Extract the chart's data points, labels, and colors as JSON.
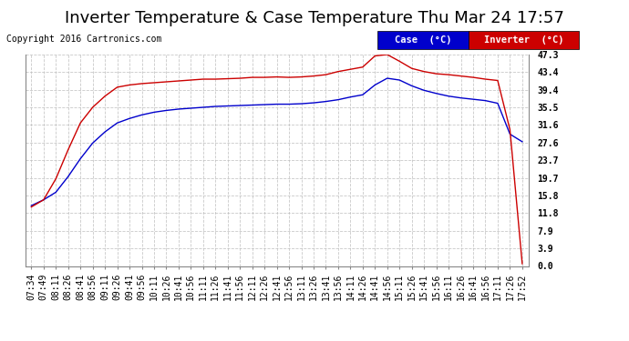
{
  "title": "Inverter Temperature & Case Temperature Thu Mar 24 17:57",
  "copyright": "Copyright 2016 Cartronics.com",
  "yticks": [
    0.0,
    3.9,
    7.9,
    11.8,
    15.8,
    19.7,
    23.7,
    27.6,
    31.6,
    35.5,
    39.4,
    43.4,
    47.3
  ],
  "xtick_labels": [
    "07:34",
    "07:49",
    "08:11",
    "08:26",
    "08:41",
    "08:56",
    "09:11",
    "09:26",
    "09:41",
    "09:56",
    "10:11",
    "10:26",
    "10:41",
    "10:56",
    "11:11",
    "11:26",
    "11:41",
    "11:56",
    "12:11",
    "12:26",
    "12:41",
    "12:56",
    "13:11",
    "13:26",
    "13:41",
    "13:56",
    "14:11",
    "14:26",
    "14:41",
    "14:56",
    "15:11",
    "15:26",
    "15:41",
    "15:56",
    "16:11",
    "16:26",
    "16:41",
    "16:56",
    "17:11",
    "17:26",
    "17:52"
  ],
  "bg_color": "#ffffff",
  "grid_color": "#bbbbbb",
  "case_color": "#0000cc",
  "inverter_color": "#cc0000",
  "title_fontsize": 13,
  "copyright_fontsize": 7,
  "tick_fontsize": 7,
  "ymin": 0.0,
  "ymax": 47.3,
  "case_data": [
    13.5,
    14.8,
    16.5,
    20.0,
    24.0,
    27.5,
    30.0,
    32.0,
    33.0,
    33.8,
    34.4,
    34.8,
    35.1,
    35.3,
    35.5,
    35.7,
    35.8,
    35.9,
    36.0,
    36.1,
    36.2,
    36.2,
    36.3,
    36.5,
    36.8,
    37.2,
    37.8,
    38.3,
    40.5,
    42.0,
    41.6,
    40.3,
    39.3,
    38.6,
    38.0,
    37.6,
    37.3,
    37.0,
    36.4,
    29.5,
    27.8
  ],
  "inverter_data": [
    13.2,
    14.8,
    19.5,
    26.0,
    32.0,
    35.5,
    38.0,
    40.0,
    40.5,
    40.8,
    41.0,
    41.2,
    41.4,
    41.6,
    41.8,
    41.8,
    41.9,
    42.0,
    42.2,
    42.2,
    42.3,
    42.2,
    42.3,
    42.5,
    42.8,
    43.5,
    44.0,
    44.5,
    47.0,
    47.3,
    45.8,
    44.2,
    43.5,
    43.0,
    42.8,
    42.5,
    42.2,
    41.8,
    41.5,
    30.5,
    0.5
  ]
}
